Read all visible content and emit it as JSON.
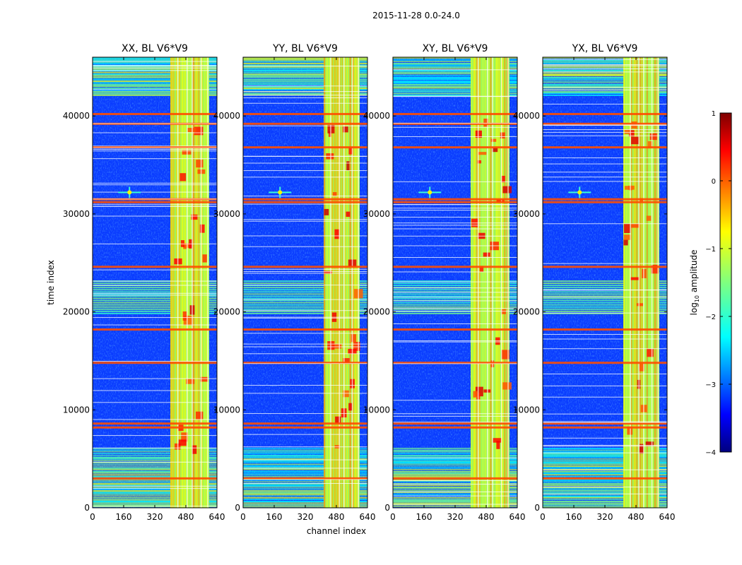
{
  "figure": {
    "suptitle": "2015-11-28 0.0-24.0"
  },
  "chart_data": {
    "type": "heatmap",
    "suptitle": "2015-11-28 0.0-24.0",
    "xlabel": "channel index",
    "ylabel": "time index",
    "xlim": [
      0,
      640
    ],
    "ylim": [
      0,
      46000
    ],
    "xticks": [
      "0",
      "160",
      "320",
      "480",
      "640"
    ],
    "xtick_values": [
      0,
      160,
      320,
      480,
      640
    ],
    "yticks": [
      "0",
      "10000",
      "20000",
      "30000",
      "40000"
    ],
    "ytick_values": [
      0,
      10000,
      20000,
      30000,
      40000
    ],
    "panels": [
      {
        "title": "XX, BL V6*V9"
      },
      {
        "title": "YY, BL V6*V9"
      },
      {
        "title": "XY, BL V6*V9"
      },
      {
        "title": "YX, BL V6*V9"
      }
    ],
    "colorbar": {
      "label_main": "log",
      "label_sub": "10",
      "label_rest": " amplitude",
      "range": [
        -4,
        1
      ],
      "ticks": [
        "1",
        "0",
        "−1",
        "−2",
        "−3",
        "−4"
      ],
      "tick_values": [
        1,
        0,
        -1,
        -2,
        -3,
        -4
      ],
      "colormap": "jet"
    },
    "features": {
      "bright_channel_range": [
        400,
        600
      ],
      "horizontal_bands_time": [
        3000,
        8200,
        8600,
        14800,
        18200,
        24600,
        31200,
        31500,
        36800,
        39200,
        40200
      ],
      "noisy_time_ranges": [
        [
          0,
          6000
        ],
        [
          42000,
          46000
        ]
      ],
      "point_source": {
        "channel": 190,
        "time": 32200
      }
    }
  }
}
